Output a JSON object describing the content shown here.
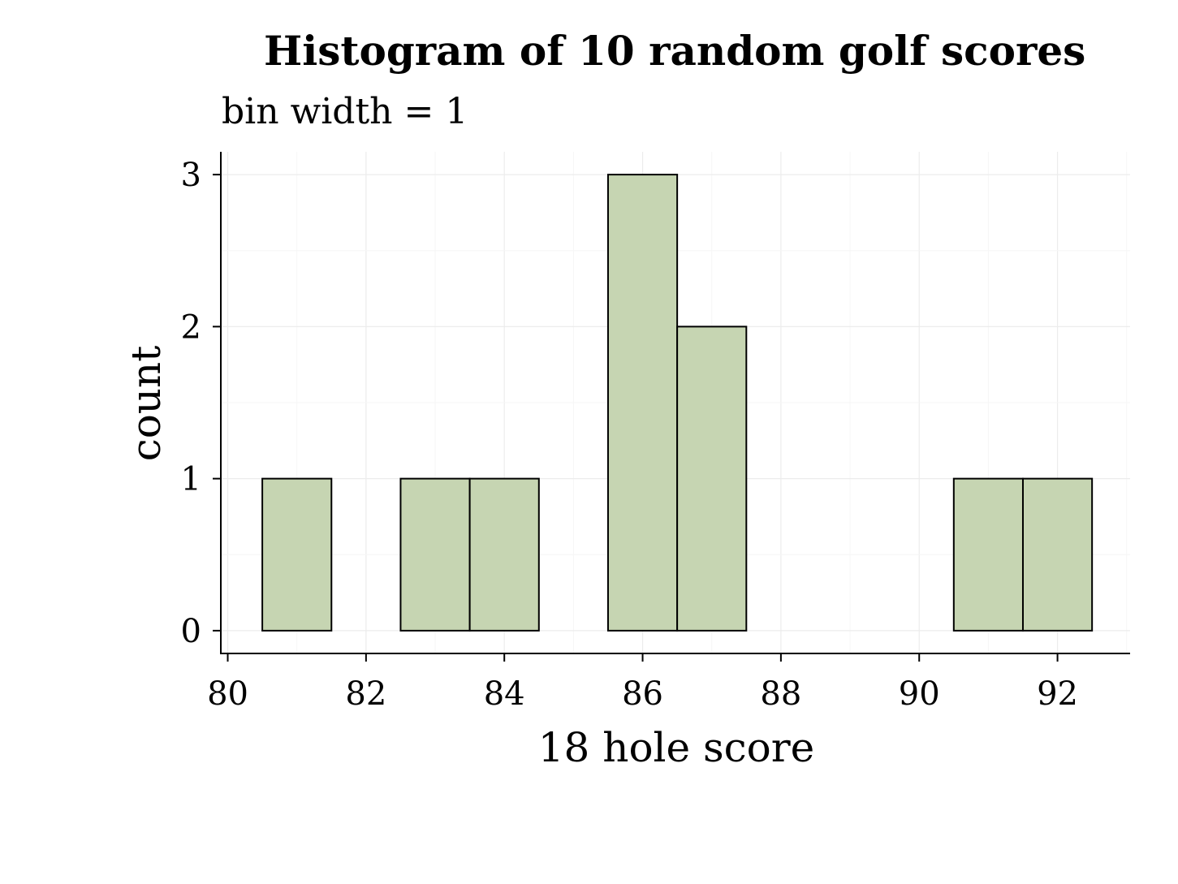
{
  "chart_data": {
    "type": "bar",
    "title": "Histogram of 10 random golf scores",
    "subtitle": "bin width = 1",
    "xlabel": "18 hole score",
    "ylabel": "count",
    "x": [
      81,
      82,
      83,
      84,
      85,
      86,
      87,
      88,
      89,
      90,
      91,
      92
    ],
    "values": [
      1,
      0,
      1,
      1,
      0,
      3,
      2,
      0,
      0,
      0,
      1,
      1
    ],
    "bin_width": 1,
    "xlim": [
      79.9,
      93.05
    ],
    "ylim": [
      -0.15,
      3.15
    ],
    "xticks": [
      "80",
      "82",
      "84",
      "86",
      "88",
      "90",
      "92"
    ],
    "yticks": [
      "0",
      "1",
      "2",
      "3"
    ],
    "bar_color": "#c6d5b2",
    "grid": true,
    "legend": "none"
  }
}
